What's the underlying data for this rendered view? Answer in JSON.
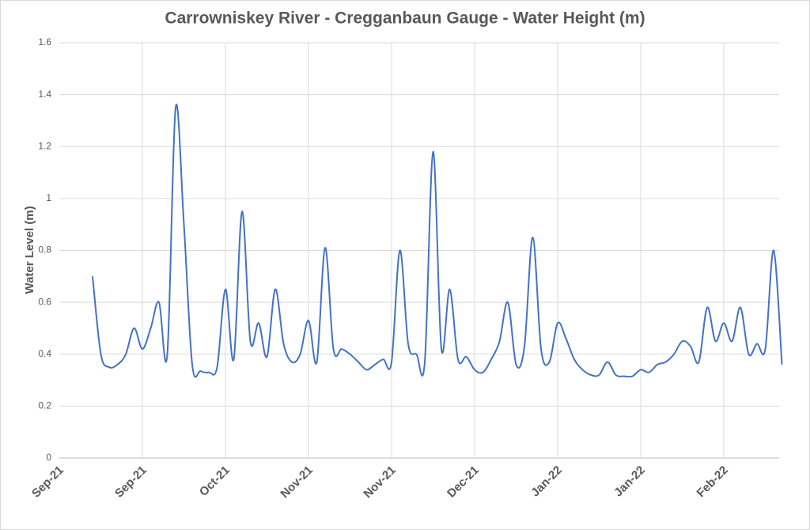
{
  "chart_data": {
    "type": "line",
    "title": "Carrowniskey River - Cregganbaun Gauge - Water Height (m)",
    "y_label": "Water Level (m)",
    "categories": [
      "Sep-21",
      null,
      null,
      null,
      null,
      null,
      null,
      null,
      null,
      null,
      "Sep-21",
      null,
      null,
      null,
      null,
      null,
      null,
      null,
      null,
      null,
      "Oct-21",
      null,
      null,
      null,
      null,
      null,
      null,
      null,
      null,
      null,
      "Nov-21",
      null,
      null,
      null,
      null,
      null,
      null,
      null,
      null,
      null,
      "Nov-21",
      null,
      null,
      null,
      null,
      null,
      null,
      null,
      null,
      null,
      "Dec-21",
      null,
      null,
      null,
      null,
      null,
      null,
      null,
      null,
      null,
      "Jan-22",
      null,
      null,
      null,
      null,
      null,
      null,
      null,
      null,
      null,
      "Jan-22",
      null,
      null,
      null,
      null,
      null,
      null,
      null,
      null,
      null,
      "Feb-22",
      null,
      null,
      null,
      null,
      null,
      null,
      null
    ],
    "values": [
      null,
      null,
      null,
      null,
      0.7,
      0.4,
      0.35,
      0.36,
      0.4,
      0.5,
      0.42,
      0.5,
      0.6,
      0.4,
      1.35,
      0.9,
      0.36,
      0.335,
      0.33,
      0.35,
      0.65,
      0.38,
      0.95,
      0.45,
      0.52,
      0.39,
      0.65,
      0.44,
      0.37,
      0.4,
      0.53,
      0.37,
      0.81,
      0.42,
      0.42,
      0.4,
      0.37,
      0.34,
      0.36,
      0.38,
      0.37,
      0.8,
      0.44,
      0.4,
      0.37,
      1.18,
      0.42,
      0.65,
      0.38,
      0.39,
      0.34,
      0.33,
      0.38,
      0.45,
      0.6,
      0.36,
      0.43,
      0.85,
      0.42,
      0.37,
      0.52,
      0.46,
      0.38,
      0.34,
      0.32,
      0.32,
      0.37,
      0.32,
      0.315,
      0.315,
      0.34,
      0.33,
      0.36,
      0.37,
      0.4,
      0.45,
      0.43,
      0.37,
      0.58,
      0.45,
      0.52,
      0.45,
      0.58,
      0.4,
      0.44,
      0.42,
      0.8,
      0.36
    ],
    "color": "#4472c4",
    "ylim": [
      0,
      1.6
    ],
    "yticks": [
      0,
      0.2,
      0.4,
      0.6,
      0.8,
      1,
      1.2,
      1.4,
      1.6
    ],
    "grid": true
  }
}
